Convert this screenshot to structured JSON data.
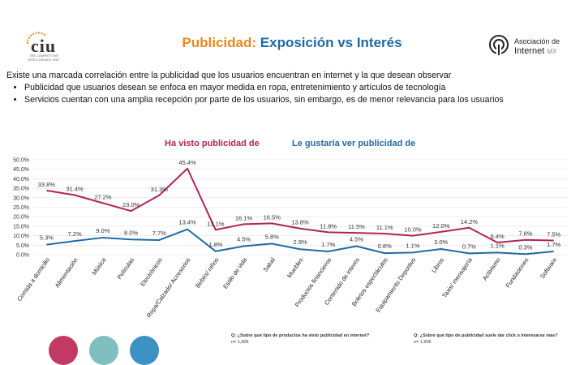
{
  "header": {
    "title_part1": "Publicidad:",
    "title_part2": "Exposición vs Interés",
    "logo_left_text": "ciu",
    "logo_left_tagline": "THE COMPETITIVE INTELLIGENCE UNIT",
    "logo_right_line1": "Asociación de",
    "logo_right_line2": "Internet",
    "logo_right_suffix": "MX"
  },
  "summary": {
    "intro": "Existe una marcada correlación entre la publicidad que los usuarios encuentran en internet y la que desean observar",
    "bullets": [
      "Publicidad que usuarios desean se enfoca en mayor medida en ropa, entretenimiento y artículos de tecnología",
      "Servicios cuentan con una amplia recepción por parte de los usuarios, sin embargo, es de menor relevancia para los usuarios"
    ]
  },
  "colors": {
    "red": "#b0245a",
    "blue": "#1f6aa5",
    "orange": "#e8891c",
    "circle1": "#c23a64",
    "circle2": "#7fbfbf",
    "circle3": "#3d92c4"
  },
  "chart_data": {
    "type": "line",
    "categories": [
      "Comida a domicilio",
      "Alimentación",
      "Música",
      "Películas",
      "Electrónicos",
      "Ropa/Calzado/ Accesorios",
      "Bebés/ niños",
      "Estilo de vida",
      "Salud",
      "Muebles",
      "Productos financieros",
      "Contenido de interés",
      "Boletos espectáculos",
      "Equipamiento Deportivo",
      "Libros",
      "Taxis/ mensajería",
      "Activismo",
      "Fundaciones",
      "Software"
    ],
    "series": [
      {
        "name": "Ha visto publicidad de",
        "color": "#b0245a",
        "values": [
          33.8,
          31.4,
          27.2,
          23.0,
          31.3,
          45.4,
          13.1,
          16.1,
          16.5,
          13.8,
          11.8,
          11.5,
          11.1,
          10.0,
          12.0,
          14.2,
          6.4,
          7.8,
          7.5
        ]
      },
      {
        "name": "Le gustaría ver publicidad de",
        "color": "#1f6aa5",
        "values": [
          5.3,
          7.2,
          9.0,
          8.0,
          7.7,
          13.4,
          1.8,
          4.5,
          5.8,
          2.9,
          1.7,
          4.5,
          0.8,
          1.1,
          3.0,
          0.7,
          1.1,
          0.3,
          1.7
        ]
      }
    ],
    "ylim": [
      0,
      50
    ],
    "yticks": [
      0,
      5,
      10,
      15,
      20,
      25,
      30,
      35,
      40,
      45,
      50
    ],
    "ytick_labels": [
      "0.0%",
      "5.0%",
      "10.0%",
      "15.0%",
      "20.0%",
      "25.0%",
      "30.0%",
      "35.0%",
      "40.0%",
      "45.0%",
      "50.0%"
    ],
    "data_labels": {
      "red": [
        "33.8%",
        "31.4%",
        "27.2%",
        "23.0%",
        "31.3%",
        "45.4%",
        "13.1%",
        "16.1%",
        "16.5%",
        "13.8%",
        "11.8%",
        "11.5%",
        "11.1%",
        "10.0%",
        "12.0%",
        "14.2%",
        "6.4%",
        "7.8%",
        "7.5%"
      ],
      "blue": [
        "5.3%",
        "7.2%",
        "9.0%",
        "8.0%",
        "7.7%",
        "13.4%",
        "1.8%",
        "4.5%",
        "5.8%",
        "2.9%",
        "1.7%",
        "4.5%",
        "0.8%",
        "1.1%",
        "3.0%",
        "0.7%",
        "1.1%",
        "0.3%",
        "1.7%"
      ]
    },
    "grid": true,
    "legend_position": "top"
  },
  "notes": {
    "q1": "Q: ¿Sobre qué tipo de productos ha visto publicidad en internet?",
    "n1": "n= 1,905",
    "q2": "Q: ¿Sobre qué tipo de publicidad suele dar click o interesarse más?",
    "n2": "n= 1,905"
  }
}
